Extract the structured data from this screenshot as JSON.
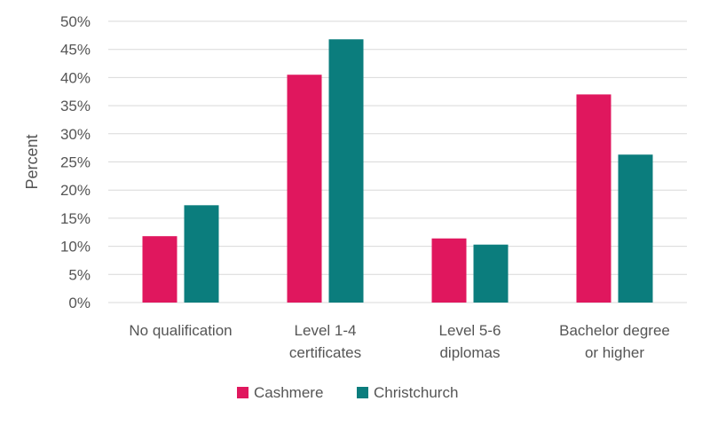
{
  "chart_data": {
    "type": "bar",
    "categories": [
      [
        "No qualification"
      ],
      [
        "Level 1-4",
        "certificates"
      ],
      [
        "Level 5-6",
        "diplomas"
      ],
      [
        "Bachelor degree",
        "or higher"
      ]
    ],
    "series": [
      {
        "name": "Cashmere",
        "color": "#e0175e",
        "values": [
          11.8,
          40.5,
          11.4,
          37.0
        ]
      },
      {
        "name": "Christchurch",
        "color": "#0b7d7d",
        "values": [
          17.3,
          46.8,
          10.3,
          26.3
        ]
      }
    ],
    "ylabel": "Percent",
    "ylim": [
      0,
      50
    ],
    "ytick_step": 5,
    "ytick_suffix": "%",
    "grid": true,
    "legend": "bottom-center"
  }
}
